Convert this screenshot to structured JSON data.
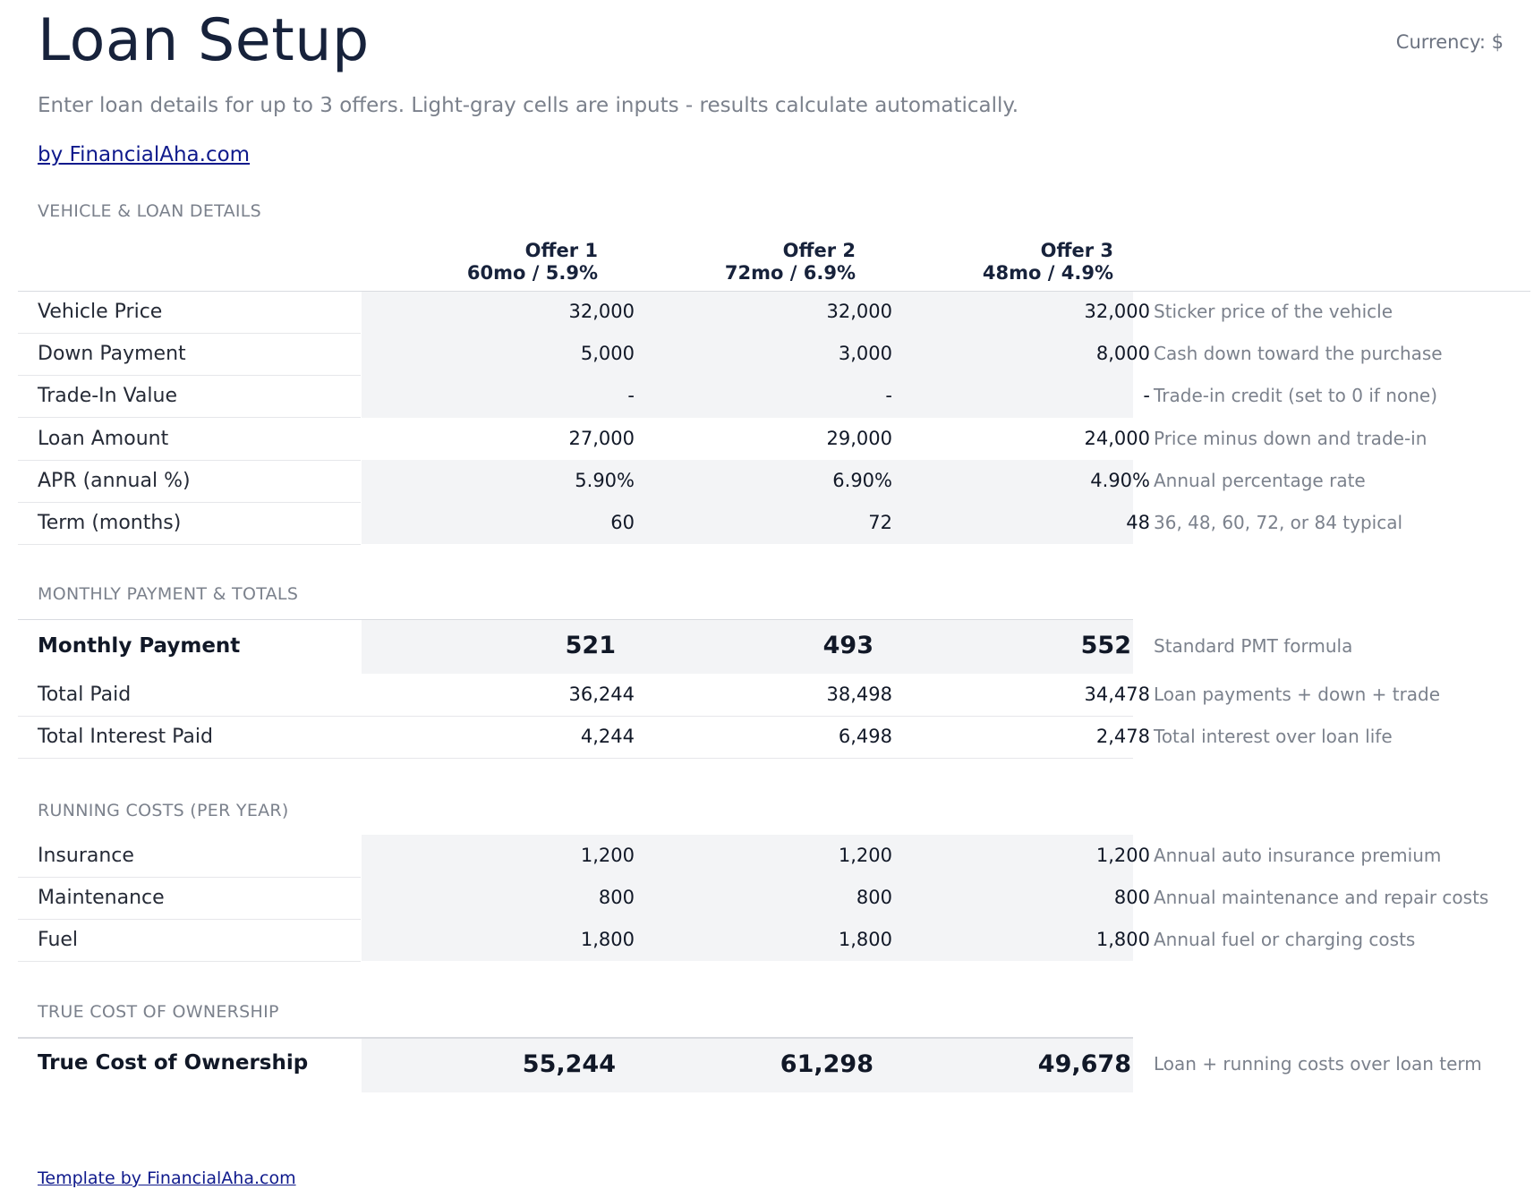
{
  "header": {
    "title": "Loan Setup",
    "currency": "Currency: $",
    "subtitle": "Enter loan details for up to 3 offers. Light-gray cells are inputs - results calculate automatically.",
    "credit": "by FinancialAha.com"
  },
  "offers": [
    {
      "name": "Offer 1",
      "terms": "60mo / 5.9%"
    },
    {
      "name": "Offer 2",
      "terms": "72mo / 6.9%"
    },
    {
      "name": "Offer 3",
      "terms": "48mo / 4.9%"
    }
  ],
  "sections": {
    "vehicle": "VEHICLE & LOAN DETAILS",
    "monthly": "MONTHLY PAYMENT & TOTALS",
    "running": "RUNNING COSTS (PER YEAR)",
    "tco": "TRUE COST OF OWNERSHIP"
  },
  "vehicle_rows": [
    {
      "label": "Vehicle Price",
      "values": [
        "32,000",
        "32,000",
        "32,000"
      ],
      "note": "Sticker price of the vehicle"
    },
    {
      "label": "Down Payment",
      "values": [
        "5,000",
        "3,000",
        "8,000"
      ],
      "note": "Cash down toward the purchase"
    },
    {
      "label": "Trade-In Value",
      "values": [
        "-",
        "-",
        "-"
      ],
      "note": "Trade-in credit (set to 0 if none)"
    },
    {
      "label": "Loan Amount",
      "values": [
        "27,000",
        "29,000",
        "24,000"
      ],
      "note": "Price minus down and trade-in"
    },
    {
      "label": "APR (annual %)",
      "values": [
        "5.90%",
        "6.90%",
        "4.90%"
      ],
      "note": "Annual percentage rate"
    },
    {
      "label": "Term (months)",
      "values": [
        "60",
        "72",
        "48"
      ],
      "note": "36, 48, 60, 72, or 84 typical"
    }
  ],
  "monthly_payment": {
    "label": "Monthly Payment",
    "values": [
      "521",
      "493",
      "552"
    ],
    "note": "Standard PMT formula"
  },
  "total_rows": [
    {
      "label": "Total Paid",
      "values": [
        "36,244",
        "38,498",
        "34,478"
      ],
      "note": "Loan payments + down + trade"
    },
    {
      "label": "Total Interest Paid",
      "values": [
        "4,244",
        "6,498",
        "2,478"
      ],
      "note": "Total interest over loan life"
    }
  ],
  "running_rows": [
    {
      "label": "Insurance",
      "values": [
        "1,200",
        "1,200",
        "1,200"
      ],
      "note": "Annual auto insurance premium"
    },
    {
      "label": "Maintenance",
      "values": [
        "800",
        "800",
        "800"
      ],
      "note": "Annual maintenance and repair costs"
    },
    {
      "label": "Fuel",
      "values": [
        "1,800",
        "1,800",
        "1,800"
      ],
      "note": "Annual fuel or charging costs"
    }
  ],
  "tco": {
    "label": "True Cost of Ownership",
    "values": [
      "55,244",
      "61,298",
      "49,678"
    ],
    "note": "Loan + running costs over loan term"
  },
  "footer": "Template by FinancialAha.com"
}
